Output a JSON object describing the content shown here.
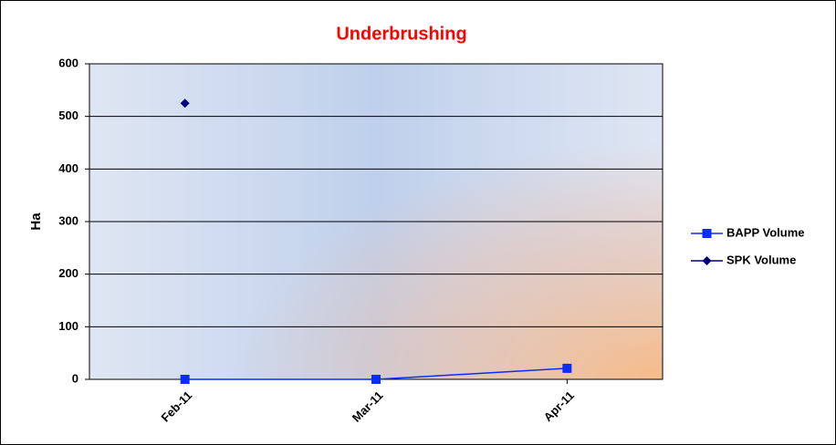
{
  "chart_data": {
    "type": "line",
    "title": "Underbrushing",
    "y_label": "Ha",
    "categories": [
      "Feb-11",
      "Mar-11",
      "Apr-11"
    ],
    "series": [
      {
        "name": "BAPP Volume",
        "color": "#0a2cff",
        "marker": "square",
        "values": [
          0,
          0,
          21
        ]
      },
      {
        "name": "SPK Volume",
        "color": "#000080",
        "marker": "diamond",
        "values": [
          525,
          null,
          null
        ]
      }
    ],
    "ylim": [
      0,
      600
    ],
    "yticks": [
      0,
      100,
      200,
      300,
      400,
      500,
      600
    ],
    "grid": true,
    "legend": "right"
  }
}
